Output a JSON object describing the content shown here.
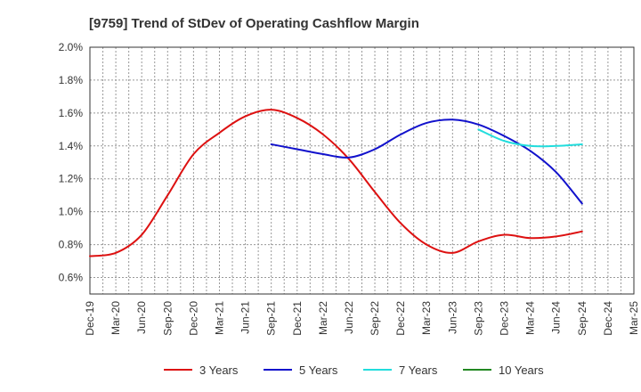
{
  "chart_data": {
    "type": "line",
    "title": "[9759]  Trend of StDev of Operating Cashflow Margin",
    "xlabel": "",
    "ylabel": "",
    "x": [
      "Dec-19",
      "Mar-20",
      "Jun-20",
      "Sep-20",
      "Dec-20",
      "Mar-21",
      "Jun-21",
      "Sep-21",
      "Dec-21",
      "Mar-22",
      "Jun-22",
      "Sep-22",
      "Dec-22",
      "Mar-23",
      "Jun-23",
      "Sep-23",
      "Dec-23",
      "Mar-24",
      "Jun-24",
      "Sep-24",
      "Dec-24",
      "Mar-25"
    ],
    "yticks": [
      "0.6%",
      "0.8%",
      "1.0%",
      "1.2%",
      "1.4%",
      "1.6%",
      "1.8%",
      "2.0%"
    ],
    "ylim": [
      0.5,
      2.0
    ],
    "grid": true,
    "legend_position": "bottom",
    "series": [
      {
        "name": "3 Years",
        "color": "#dd1111",
        "values": [
          0.73,
          0.75,
          0.86,
          1.1,
          1.35,
          1.48,
          1.58,
          1.62,
          1.57,
          1.47,
          1.32,
          1.12,
          0.93,
          0.8,
          0.75,
          0.82,
          0.86,
          0.84,
          0.85,
          0.88,
          null,
          null
        ]
      },
      {
        "name": "5 Years",
        "color": "#1111cc",
        "values": [
          null,
          null,
          null,
          null,
          null,
          null,
          null,
          1.41,
          1.38,
          1.35,
          1.33,
          1.38,
          1.47,
          1.54,
          1.56,
          1.53,
          1.46,
          1.37,
          1.24,
          1.05,
          null,
          null
        ]
      },
      {
        "name": "7 Years",
        "color": "#22dddd",
        "values": [
          null,
          null,
          null,
          null,
          null,
          null,
          null,
          null,
          null,
          null,
          null,
          null,
          null,
          null,
          null,
          1.5,
          1.43,
          1.4,
          1.4,
          1.41,
          null,
          null
        ]
      },
      {
        "name": "10 Years",
        "color": "#228822",
        "values": [
          null,
          null,
          null,
          null,
          null,
          null,
          null,
          null,
          null,
          null,
          null,
          null,
          null,
          null,
          null,
          null,
          null,
          null,
          null,
          null,
          null,
          null
        ]
      }
    ]
  }
}
